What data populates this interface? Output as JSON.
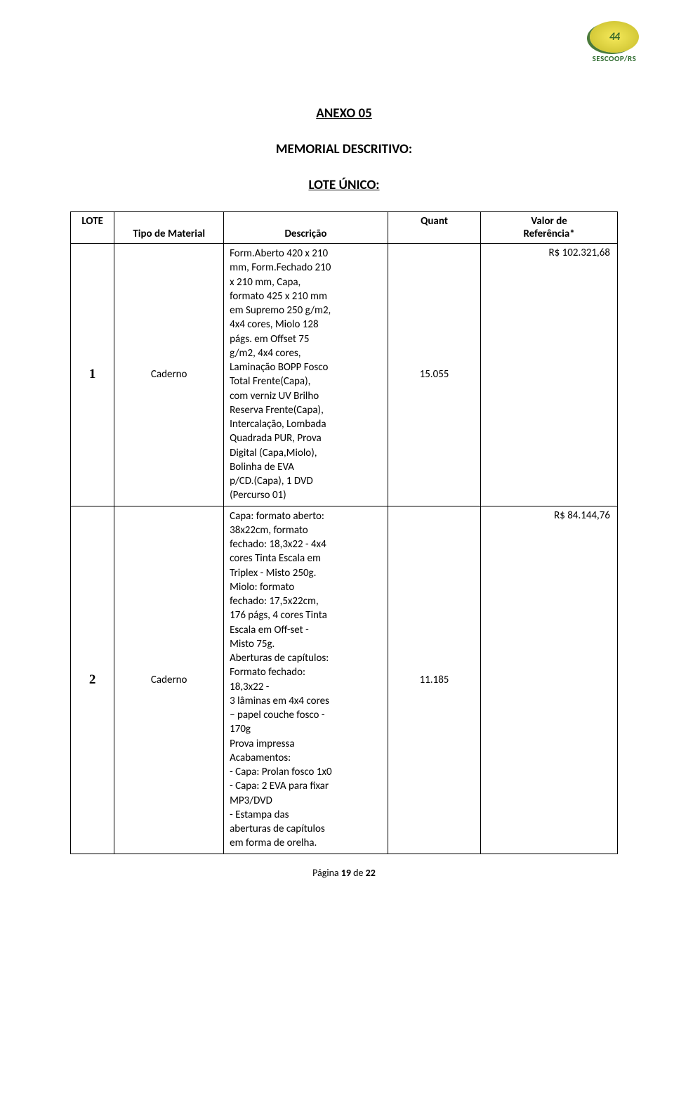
{
  "logo": {
    "inner": "44",
    "text": "SESCOOP/RS"
  },
  "titles": {
    "main": "ANEXO 05",
    "sub": "MEMORIAL DESCRITIVO:",
    "lote": "LOTE ÚNICO:"
  },
  "table": {
    "headers": {
      "lote": "LOTE",
      "tipo": "Tipo de Material",
      "desc": "Descrição",
      "quant": "Quant",
      "valor": "Valor de\nReferência*"
    },
    "rows": [
      {
        "lote": "1",
        "tipo": "Caderno",
        "desc": "Form.Aberto 420 x 210\nmm, Form.Fechado 210\nx 210 mm, Capa,\nformato 425 x 210 mm\nem Supremo 250 g/m2,\n4x4 cores, Miolo 128\npágs. em Offset 75\ng/m2, 4x4 cores,\nLaminação BOPP Fosco\nTotal Frente(Capa),\ncom verniz UV Brilho\nReserva Frente(Capa),\nIntercalação, Lombada\nQuadrada PUR, Prova\nDigital (Capa,Miolo),\nBolinha de EVA\np/CD.(Capa), 1 DVD\n(Percurso 01)",
        "quant": "15.055",
        "valor": "R$ 102.321,68"
      },
      {
        "lote": "2",
        "tipo": "Caderno",
        "desc": "Capa: formato aberto:\n38x22cm, formato\nfechado: 18,3x22 - 4x4\ncores Tinta Escala em\nTriplex - Misto 250g.\nMiolo: formato\nfechado: 17,5x22cm,\n176 págs, 4 cores Tinta\nEscala em Off-set -\nMisto 75g.\nAberturas de capítulos:\nFormato fechado:\n18,3x22 -\n3 lâminas em 4x4 cores\n– papel couche fosco -\n170g\nProva impressa\nAcabamentos:\n- Capa: Prolan fosco 1x0\n- Capa: 2 EVA para fixar\nMP3/DVD\n- Estampa das\naberturas de capítulos\nem forma de orelha.",
        "quant": "11.185",
        "valor": "R$ 84.144,76"
      }
    ]
  },
  "footer": {
    "prefix": "Página ",
    "page": "19",
    "mid": " de ",
    "total": "22"
  }
}
